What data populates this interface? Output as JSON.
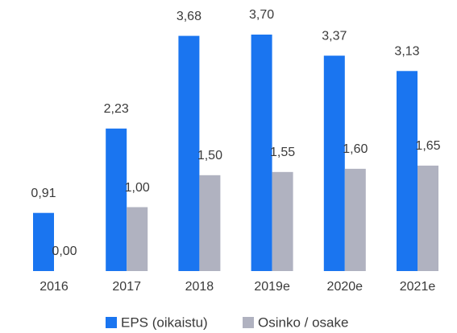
{
  "chart_data": {
    "type": "bar",
    "categories": [
      "2016",
      "2017",
      "2018",
      "2019e",
      "2020e",
      "2021e"
    ],
    "series": [
      {
        "name": "EPS (oikaistu)",
        "color": "#1a75f0",
        "values": [
          0.91,
          2.23,
          3.68,
          3.7,
          3.37,
          3.13
        ],
        "value_labels": [
          "0,91",
          "2,23",
          "3,68",
          "3,70",
          "3,37",
          "3,13"
        ]
      },
      {
        "name": "Osinko / osake",
        "color": "#b0b2c0",
        "values": [
          0.0,
          1.0,
          1.5,
          1.55,
          1.6,
          1.65
        ],
        "value_labels": [
          "0,00",
          "1,00",
          "1,50",
          "1,55",
          "1,60",
          "1,65"
        ]
      }
    ],
    "legend": "bottom"
  }
}
